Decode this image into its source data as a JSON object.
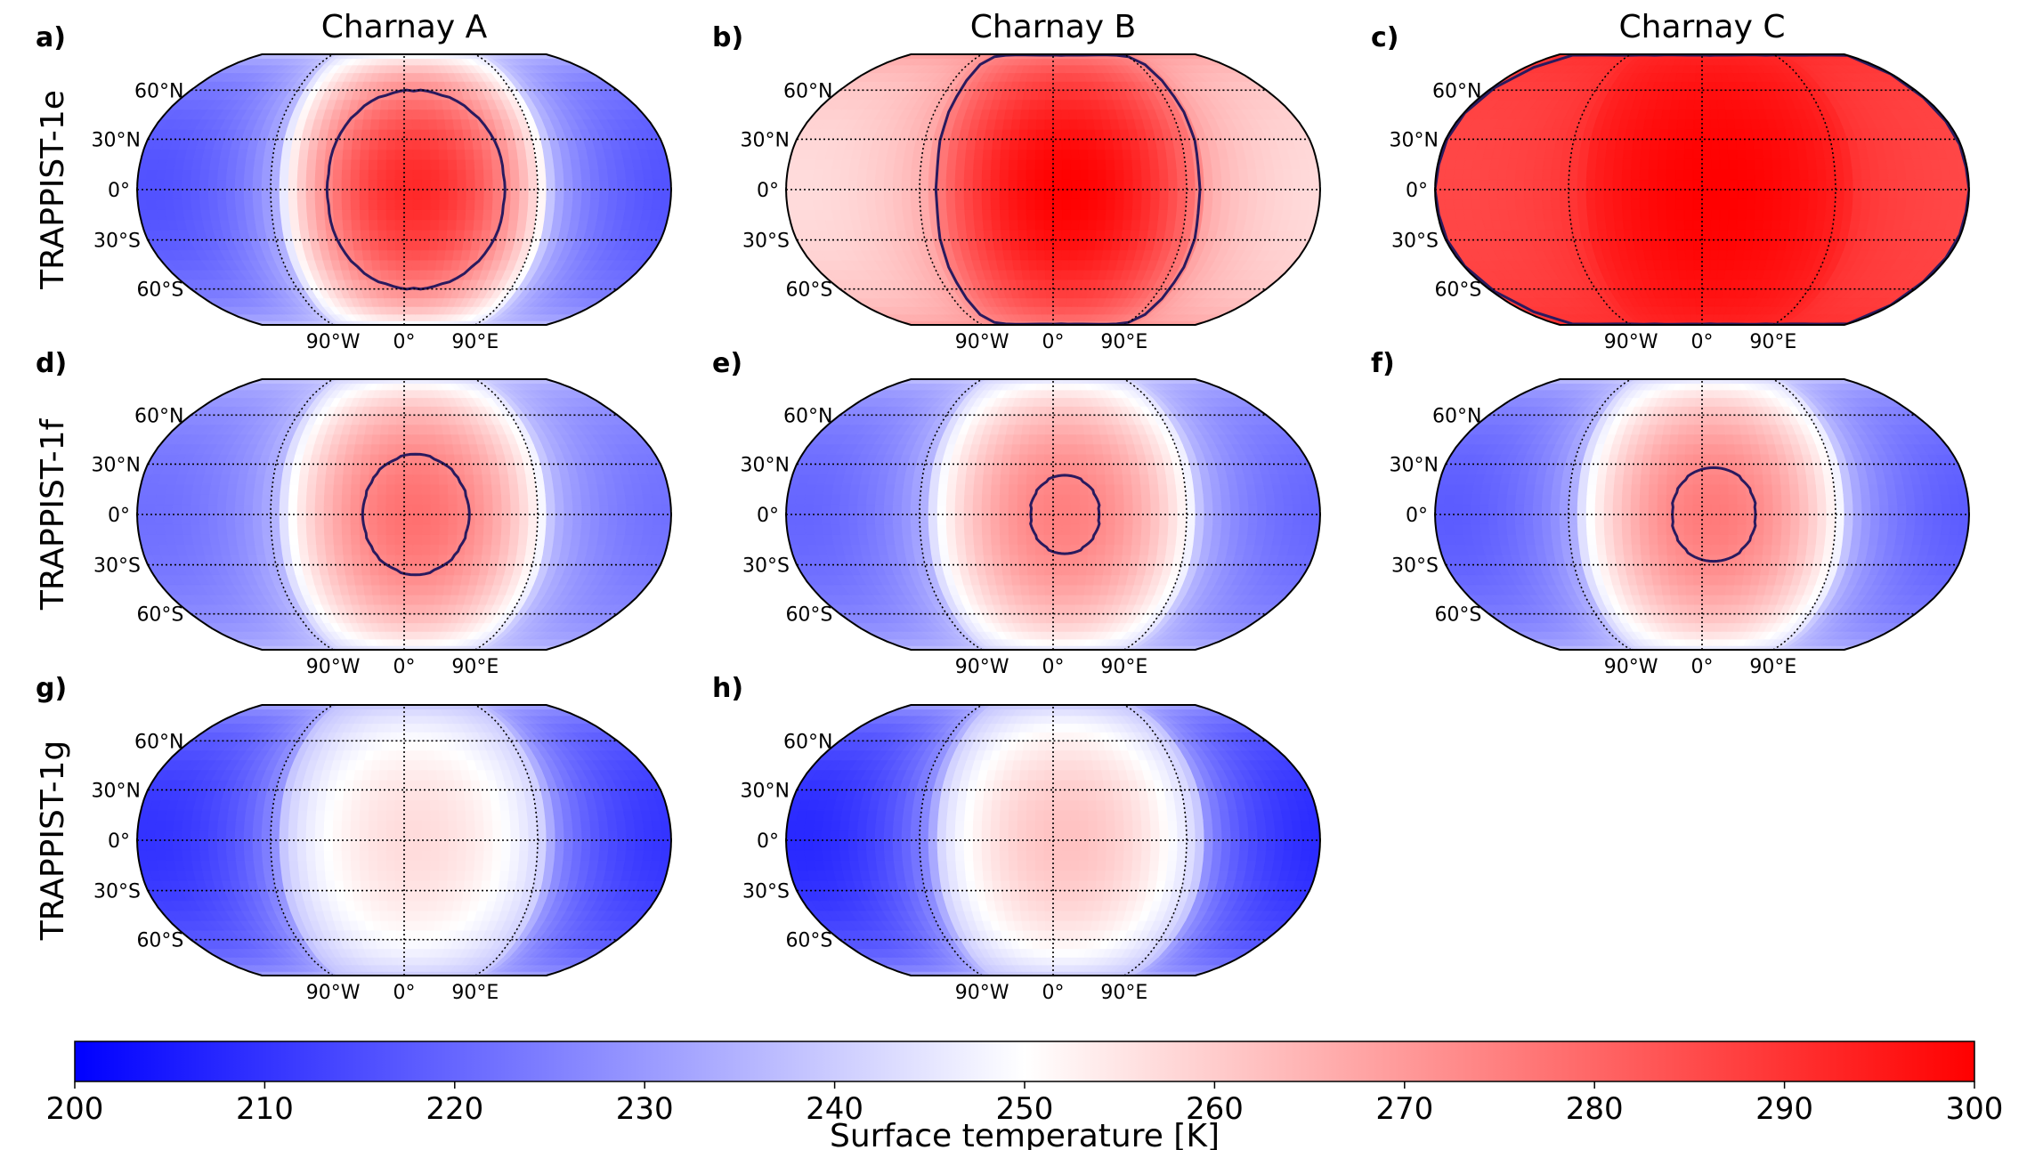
{
  "chart_data": {
    "type": "heatmap",
    "projection": "Robinson",
    "title": "",
    "columns": [
      "Charnay A",
      "Charnay B",
      "Charnay C"
    ],
    "rows": [
      "TRAPPIST-1e",
      "TRAPPIST-1f",
      "TRAPPIST-1g"
    ],
    "latitude_ticks": [
      "60°N",
      "30°N",
      "0°",
      "30°S",
      "60°S"
    ],
    "latitude_values": [
      60,
      30,
      0,
      -30,
      -60
    ],
    "longitude_ticks": [
      "90°W",
      "0°",
      "90°E"
    ],
    "longitude_values": [
      -90,
      0,
      90
    ],
    "colorbar": {
      "label": "Surface temperature [K]",
      "min": 200,
      "max": 300,
      "ticks": [
        "200",
        "210",
        "220",
        "230",
        "240",
        "250",
        "260",
        "270",
        "280",
        "290",
        "300"
      ],
      "colormap": [
        "#0000ff",
        "#ffffff",
        "#ff0000"
      ]
    },
    "contour_level_K": 273,
    "contour_color": "#2a1a5e",
    "panels": [
      {
        "id": "a",
        "label": "a)",
        "planet": "TRAPPIST-1e",
        "case": "Charnay A",
        "substellar_K": 292,
        "limb_K": 243,
        "nightside_K": 216,
        "hotspot_shift_deg": 8
      },
      {
        "id": "b",
        "label": "b)",
        "planet": "TRAPPIST-1e",
        "case": "Charnay B",
        "substellar_K": 300,
        "limb_K": 272,
        "nightside_K": 257,
        "hotspot_shift_deg": 10
      },
      {
        "id": "c",
        "label": "c)",
        "planet": "TRAPPIST-1e",
        "case": "Charnay C",
        "substellar_K": 300,
        "limb_K": 292,
        "nightside_K": 286,
        "hotspot_shift_deg": 10
      },
      {
        "id": "d",
        "label": "d)",
        "planet": "TRAPPIST-1f",
        "case": "Charnay A",
        "substellar_K": 278,
        "limb_K": 242,
        "nightside_K": 222,
        "hotspot_shift_deg": 8
      },
      {
        "id": "e",
        "label": "e)",
        "planet": "TRAPPIST-1f",
        "case": "Charnay B",
        "substellar_K": 275,
        "limb_K": 242,
        "nightside_K": 220,
        "hotspot_shift_deg": 8
      },
      {
        "id": "f",
        "label": "f)",
        "planet": "TRAPPIST-1f",
        "case": "Charnay C",
        "substellar_K": 276,
        "limb_K": 242,
        "nightside_K": 218,
        "hotspot_shift_deg": 8
      },
      {
        "id": "g",
        "label": "g)",
        "planet": "TRAPPIST-1g",
        "case": "Charnay A",
        "substellar_K": 257,
        "limb_K": 238,
        "nightside_K": 210,
        "hotspot_shift_deg": 8
      },
      {
        "id": "h",
        "label": "h)",
        "planet": "TRAPPIST-1g",
        "case": "Charnay B",
        "substellar_K": 262,
        "limb_K": 238,
        "nightside_K": 208,
        "hotspot_shift_deg": 10
      }
    ]
  }
}
